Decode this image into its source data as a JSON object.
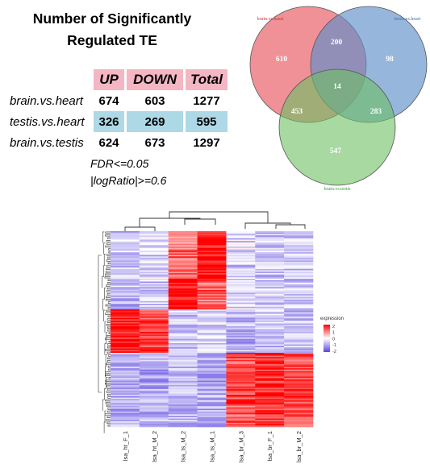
{
  "title": [
    "Number of Significantly",
    "Regulated TE"
  ],
  "table": {
    "headers": [
      "UP",
      "DOWN",
      "Total"
    ],
    "rows": [
      {
        "label": "brain.vs.heart",
        "up": "674",
        "down": "603",
        "total": "1277",
        "highlight": false
      },
      {
        "label": "testis.vs.heart",
        "up": "326",
        "down": "269",
        "total": "595",
        "highlight": true
      },
      {
        "label": "brain.vs.testis",
        "up": "624",
        "down": "673",
        "total": "1297",
        "highlight": false
      }
    ],
    "header_color": "#f4b6c2",
    "highlight_color": "#add8e6"
  },
  "notes": [
    "FDR<=0.05",
    "|logRatio|>=0.6"
  ],
  "chart_data": [
    {
      "type": "venn",
      "sets": [
        {
          "name": "brain.vs.heart",
          "color": "#e8626b"
        },
        {
          "name": "testis.vs.heart",
          "color": "#5d8fc9"
        },
        {
          "name": "brain.vs.testis",
          "color": "#6cbf60"
        }
      ],
      "regions": {
        "brain_only": 610,
        "testis_heart_only": 98,
        "brain_testis_only": 547,
        "brain_and_testis_heart": 200,
        "brain_and_brain_testis": 453,
        "testis_heart_and_brain_testis": 283,
        "all_three": 14
      }
    },
    {
      "type": "heatmap",
      "columns": [
        "lsa_ht_F_1",
        "lsa_ht_M_2",
        "lsa_ts_M_2",
        "lsa_ts_M_1",
        "lsa_br_M_3",
        "lsa_br_F_1",
        "lsa_br_M_2"
      ],
      "legend_title": "expression",
      "legend_ticks": [
        "2",
        "1",
        "0",
        "-1",
        "-2"
      ],
      "color_low": "#5a45e0",
      "color_mid": "#ffffff",
      "color_high": "#ff0000",
      "clusters": [
        {
          "rows": 0.24,
          "levels": [
            -0.6,
            -0.5,
            1.2,
            2.0,
            -0.5,
            -0.6,
            -0.6
          ]
        },
        {
          "rows": 0.16,
          "levels": [
            -0.7,
            -0.6,
            2.0,
            1.2,
            -0.4,
            -0.5,
            -0.5
          ]
        },
        {
          "rows": 0.22,
          "levels": [
            1.8,
            1.6,
            -0.6,
            -0.5,
            -0.8,
            -0.7,
            -0.7
          ]
        },
        {
          "rows": 0.38,
          "levels": [
            -0.8,
            -0.9,
            -0.8,
            -0.9,
            1.4,
            1.7,
            1.5
          ]
        }
      ]
    }
  ]
}
